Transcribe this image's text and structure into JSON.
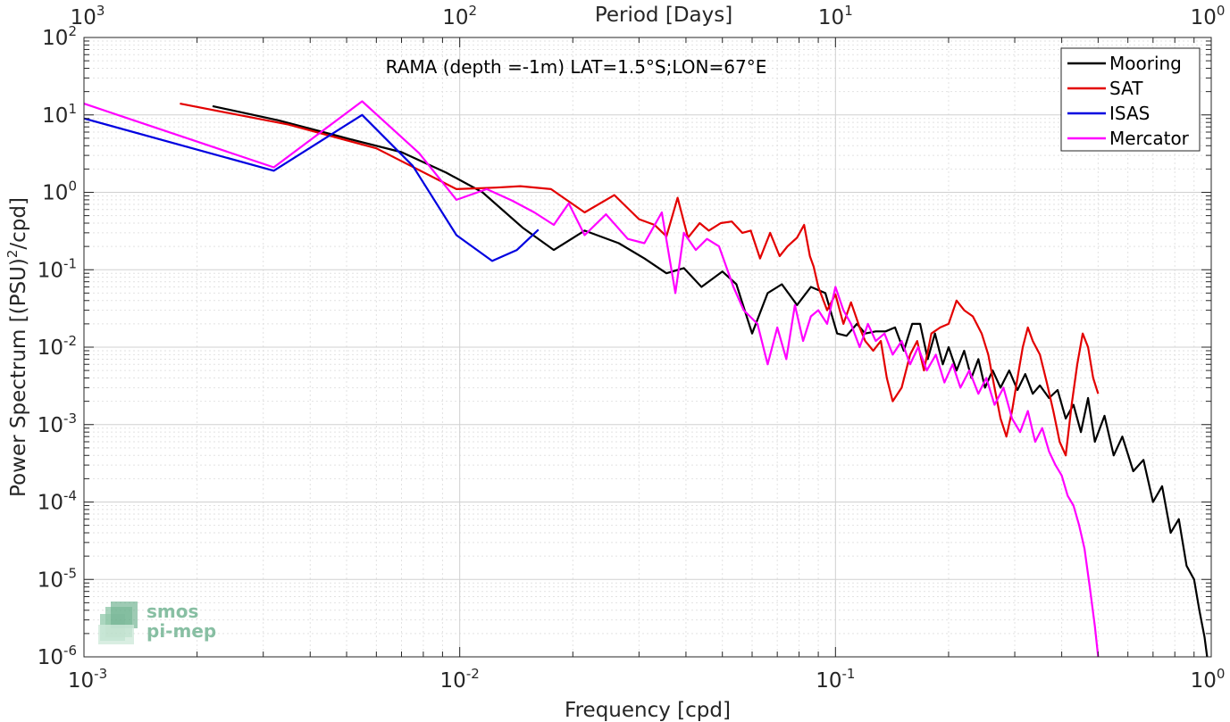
{
  "chart_data": {
    "type": "line",
    "xscale": "log",
    "yscale": "log",
    "xlim": [
      0.001,
      1
    ],
    "ylim": [
      1e-06,
      100
    ],
    "xlabel": "Frequency [cpd]",
    "ylabel": "Power Spectrum [(PSU)^2/cpd]",
    "ylabel_parts": {
      "main": "Power Spectrum [(PSU)",
      "sup": "2",
      "tail": "/cpd]"
    },
    "top_axis_label": "Period [Days]",
    "annotation": "RAMA (depth =-1m) LAT=1.5°S;LON=67°E",
    "grid": true,
    "legend_position": "top-right",
    "x_ticks": [
      {
        "value": 0.001,
        "base": "10",
        "exp": "-3"
      },
      {
        "value": 0.01,
        "base": "10",
        "exp": "-2"
      },
      {
        "value": 0.1,
        "base": "10",
        "exp": "-1"
      },
      {
        "value": 1,
        "base": "10",
        "exp": "0"
      }
    ],
    "top_ticks": [
      {
        "value": 0.001,
        "base": "10",
        "exp": "3"
      },
      {
        "value": 0.01,
        "base": "10",
        "exp": "2"
      },
      {
        "value": 0.1,
        "base": "10",
        "exp": "1"
      },
      {
        "value": 1,
        "base": "10",
        "exp": "0"
      }
    ],
    "y_ticks": [
      {
        "value": 1e-06,
        "base": "10",
        "exp": "-6"
      },
      {
        "value": 1e-05,
        "base": "10",
        "exp": "-5"
      },
      {
        "value": 0.0001,
        "base": "10",
        "exp": "-4"
      },
      {
        "value": 0.001,
        "base": "10",
        "exp": "-3"
      },
      {
        "value": 0.01,
        "base": "10",
        "exp": "-2"
      },
      {
        "value": 0.1,
        "base": "10",
        "exp": "-1"
      },
      {
        "value": 1,
        "base": "10",
        "exp": "0"
      },
      {
        "value": 10,
        "base": "10",
        "exp": "1"
      },
      {
        "value": 100,
        "base": "10",
        "exp": "2"
      }
    ],
    "series": [
      {
        "name": "Mooring",
        "color": "#000000",
        "points": [
          [
            0.0022,
            13
          ],
          [
            0.0033,
            8.5
          ],
          [
            0.005,
            5
          ],
          [
            0.007,
            3.3
          ],
          [
            0.0092,
            1.8
          ],
          [
            0.0115,
            1.0
          ],
          [
            0.0147,
            0.35
          ],
          [
            0.0178,
            0.18
          ],
          [
            0.0215,
            0.32
          ],
          [
            0.0265,
            0.22
          ],
          [
            0.031,
            0.14
          ],
          [
            0.0355,
            0.09
          ],
          [
            0.0395,
            0.105
          ],
          [
            0.044,
            0.06
          ],
          [
            0.05,
            0.095
          ],
          [
            0.0545,
            0.065
          ],
          [
            0.06,
            0.015
          ],
          [
            0.066,
            0.05
          ],
          [
            0.072,
            0.065
          ],
          [
            0.079,
            0.035
          ],
          [
            0.086,
            0.06
          ],
          [
            0.094,
            0.05
          ],
          [
            0.101,
            0.015
          ],
          [
            0.107,
            0.014
          ],
          [
            0.114,
            0.02
          ],
          [
            0.12,
            0.015
          ],
          [
            0.128,
            0.016
          ],
          [
            0.136,
            0.016
          ],
          [
            0.144,
            0.018
          ],
          [
            0.152,
            0.009
          ],
          [
            0.16,
            0.02
          ],
          [
            0.168,
            0.02
          ],
          [
            0.176,
            0.007
          ],
          [
            0.184,
            0.015
          ],
          [
            0.193,
            0.006
          ],
          [
            0.2,
            0.01
          ],
          [
            0.21,
            0.005
          ],
          [
            0.22,
            0.009
          ],
          [
            0.23,
            0.004
          ],
          [
            0.24,
            0.007
          ],
          [
            0.25,
            0.003
          ],
          [
            0.262,
            0.005
          ],
          [
            0.275,
            0.003
          ],
          [
            0.29,
            0.005
          ],
          [
            0.305,
            0.0028
          ],
          [
            0.32,
            0.0045
          ],
          [
            0.335,
            0.0025
          ],
          [
            0.35,
            0.0032
          ],
          [
            0.37,
            0.0022
          ],
          [
            0.39,
            0.0028
          ],
          [
            0.41,
            0.0012
          ],
          [
            0.43,
            0.0018
          ],
          [
            0.45,
            0.0008
          ],
          [
            0.47,
            0.0022
          ],
          [
            0.49,
            0.0006
          ],
          [
            0.52,
            0.0013
          ],
          [
            0.55,
            0.0004
          ],
          [
            0.58,
            0.0007
          ],
          [
            0.62,
            0.00025
          ],
          [
            0.66,
            0.00035
          ],
          [
            0.7,
            0.0001
          ],
          [
            0.74,
            0.00016
          ],
          [
            0.78,
            4e-05
          ],
          [
            0.82,
            6e-05
          ],
          [
            0.86,
            1.5e-05
          ],
          [
            0.9,
            1e-05
          ],
          [
            0.93,
            4e-06
          ],
          [
            0.96,
            1.8e-06
          ],
          [
            0.975,
            1e-06
          ]
        ]
      },
      {
        "name": "SAT",
        "color": "#e30000",
        "points": [
          [
            0.0018,
            14
          ],
          [
            0.0035,
            7.5
          ],
          [
            0.006,
            3.7
          ],
          [
            0.0098,
            1.1
          ],
          [
            0.0125,
            1.15
          ],
          [
            0.0145,
            1.2
          ],
          [
            0.0175,
            1.1
          ],
          [
            0.0215,
            0.55
          ],
          [
            0.0258,
            0.92
          ],
          [
            0.03,
            0.45
          ],
          [
            0.033,
            0.38
          ],
          [
            0.0355,
            0.27
          ],
          [
            0.038,
            0.85
          ],
          [
            0.0405,
            0.26
          ],
          [
            0.0435,
            0.4
          ],
          [
            0.046,
            0.32
          ],
          [
            0.0495,
            0.4
          ],
          [
            0.053,
            0.42
          ],
          [
            0.0565,
            0.3
          ],
          [
            0.0595,
            0.32
          ],
          [
            0.063,
            0.14
          ],
          [
            0.067,
            0.3
          ],
          [
            0.071,
            0.15
          ],
          [
            0.0745,
            0.2
          ],
          [
            0.079,
            0.26
          ],
          [
            0.0825,
            0.38
          ],
          [
            0.0855,
            0.15
          ],
          [
            0.0875,
            0.11
          ],
          [
            0.09,
            0.06
          ],
          [
            0.095,
            0.03
          ],
          [
            0.1,
            0.048
          ],
          [
            0.105,
            0.02
          ],
          [
            0.11,
            0.038
          ],
          [
            0.116,
            0.018
          ],
          [
            0.12,
            0.012
          ],
          [
            0.126,
            0.009
          ],
          [
            0.132,
            0.012
          ],
          [
            0.137,
            0.004
          ],
          [
            0.142,
            0.002
          ],
          [
            0.15,
            0.003
          ],
          [
            0.158,
            0.008
          ],
          [
            0.165,
            0.012
          ],
          [
            0.172,
            0.005
          ],
          [
            0.18,
            0.015
          ],
          [
            0.19,
            0.018
          ],
          [
            0.2,
            0.02
          ],
          [
            0.21,
            0.04
          ],
          [
            0.22,
            0.03
          ],
          [
            0.232,
            0.025
          ],
          [
            0.245,
            0.015
          ],
          [
            0.255,
            0.008
          ],
          [
            0.265,
            0.003
          ],
          [
            0.275,
            0.0012
          ],
          [
            0.285,
            0.0007
          ],
          [
            0.295,
            0.0015
          ],
          [
            0.305,
            0.004
          ],
          [
            0.315,
            0.01
          ],
          [
            0.325,
            0.018
          ],
          [
            0.335,
            0.012
          ],
          [
            0.35,
            0.008
          ],
          [
            0.365,
            0.0035
          ],
          [
            0.38,
            0.0015
          ],
          [
            0.395,
            0.0006
          ],
          [
            0.41,
            0.0004
          ],
          [
            0.425,
            0.0018
          ],
          [
            0.44,
            0.006
          ],
          [
            0.455,
            0.015
          ],
          [
            0.47,
            0.01
          ],
          [
            0.485,
            0.004
          ],
          [
            0.5,
            0.0025
          ]
        ]
      },
      {
        "name": "ISAS",
        "color": "#0000e0",
        "points": [
          [
            0.001,
            9
          ],
          [
            0.0032,
            1.9
          ],
          [
            0.0055,
            10
          ],
          [
            0.0075,
            2.2
          ],
          [
            0.0098,
            0.28
          ],
          [
            0.0122,
            0.13
          ],
          [
            0.0142,
            0.18
          ],
          [
            0.0162,
            0.33
          ]
        ]
      },
      {
        "name": "Mercator",
        "color": "#ff00ff",
        "points": [
          [
            0.001,
            14
          ],
          [
            0.0032,
            2.1
          ],
          [
            0.0055,
            15
          ],
          [
            0.0078,
            3.2
          ],
          [
            0.0098,
            0.8
          ],
          [
            0.0118,
            1.1
          ],
          [
            0.0138,
            0.78
          ],
          [
            0.0158,
            0.55
          ],
          [
            0.0178,
            0.38
          ],
          [
            0.0195,
            0.72
          ],
          [
            0.0215,
            0.28
          ],
          [
            0.0245,
            0.52
          ],
          [
            0.028,
            0.25
          ],
          [
            0.031,
            0.22
          ],
          [
            0.0345,
            0.55
          ],
          [
            0.0375,
            0.05
          ],
          [
            0.0395,
            0.3
          ],
          [
            0.0425,
            0.18
          ],
          [
            0.0455,
            0.25
          ],
          [
            0.049,
            0.2
          ],
          [
            0.0535,
            0.06
          ],
          [
            0.057,
            0.03
          ],
          [
            0.062,
            0.02
          ],
          [
            0.066,
            0.006
          ],
          [
            0.07,
            0.018
          ],
          [
            0.074,
            0.007
          ],
          [
            0.078,
            0.035
          ],
          [
            0.082,
            0.012
          ],
          [
            0.086,
            0.025
          ],
          [
            0.09,
            0.03
          ],
          [
            0.095,
            0.02
          ],
          [
            0.1,
            0.06
          ],
          [
            0.105,
            0.03
          ],
          [
            0.11,
            0.02
          ],
          [
            0.116,
            0.01
          ],
          [
            0.122,
            0.02
          ],
          [
            0.128,
            0.012
          ],
          [
            0.135,
            0.015
          ],
          [
            0.142,
            0.008
          ],
          [
            0.15,
            0.012
          ],
          [
            0.158,
            0.006
          ],
          [
            0.166,
            0.01
          ],
          [
            0.175,
            0.005
          ],
          [
            0.185,
            0.008
          ],
          [
            0.195,
            0.0035
          ],
          [
            0.205,
            0.006
          ],
          [
            0.215,
            0.003
          ],
          [
            0.227,
            0.005
          ],
          [
            0.24,
            0.0025
          ],
          [
            0.252,
            0.004
          ],
          [
            0.265,
            0.0018
          ],
          [
            0.28,
            0.003
          ],
          [
            0.295,
            0.0012
          ],
          [
            0.31,
            0.0008
          ],
          [
            0.325,
            0.0015
          ],
          [
            0.34,
            0.0006
          ],
          [
            0.355,
            0.0009
          ],
          [
            0.37,
            0.00045
          ],
          [
            0.385,
            0.0003
          ],
          [
            0.4,
            0.00022
          ],
          [
            0.415,
            0.00012
          ],
          [
            0.43,
            9e-05
          ],
          [
            0.445,
            5e-05
          ],
          [
            0.46,
            2.5e-05
          ],
          [
            0.475,
            8e-06
          ],
          [
            0.49,
            2.5e-06
          ],
          [
            0.5,
            1e-06
          ]
        ]
      }
    ],
    "watermark": {
      "line1": "smos",
      "line2": "pi-mep"
    }
  }
}
